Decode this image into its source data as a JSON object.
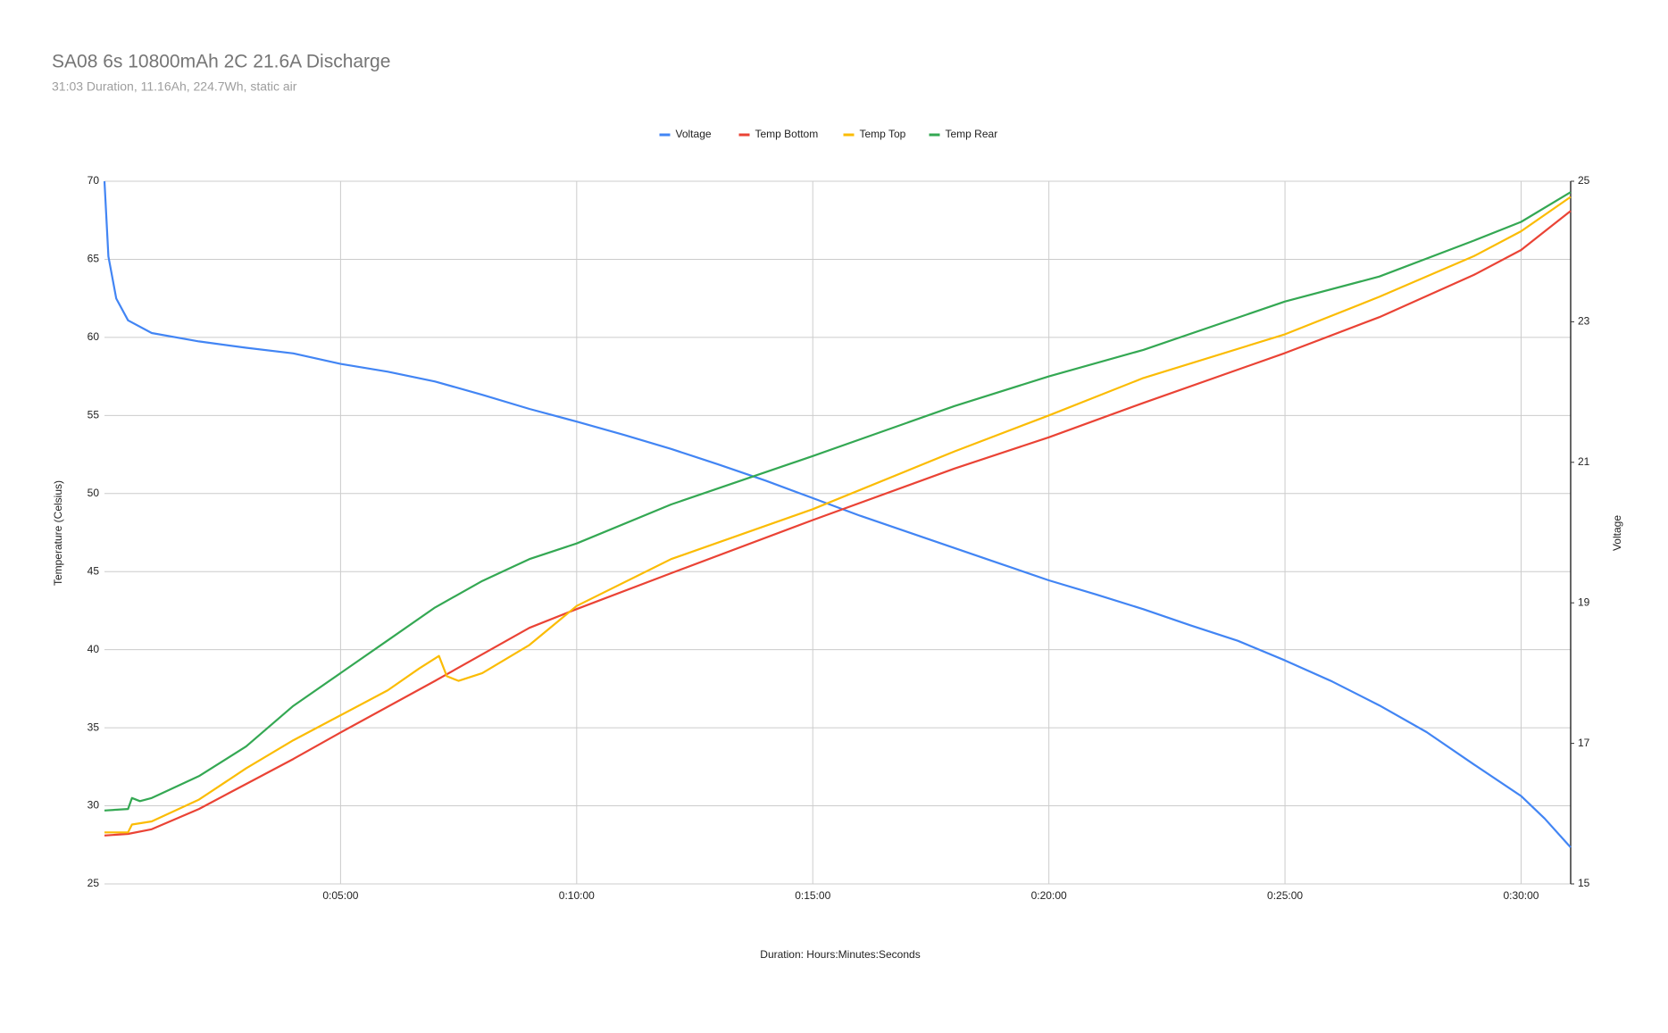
{
  "chart_data": {
    "type": "line",
    "title": "SA08 6s 10800mAh 2C 21.6A Discharge",
    "subtitle": "31:03 Duration, 11.16Ah, 224.7Wh, static air",
    "x_label": "Duration: Hours:Minutes:Seconds",
    "y_label": "Temperature (Celsius)",
    "y2_label": "Voltage",
    "xlim": [
      0,
      1863
    ],
    "xticks": [
      {
        "value": 300,
        "label": "0:05:00"
      },
      {
        "value": 600,
        "label": "0:10:00"
      },
      {
        "value": 900,
        "label": "0:15:00"
      },
      {
        "value": 1200,
        "label": "0:20:00"
      },
      {
        "value": 1500,
        "label": "0:25:00"
      },
      {
        "value": 1800,
        "label": "0:30:00"
      }
    ],
    "ylim": [
      25,
      70
    ],
    "yticks": [
      25,
      30,
      35,
      40,
      45,
      50,
      55,
      60,
      65,
      70
    ],
    "y2lim": [
      15,
      25
    ],
    "y2ticks": [
      15,
      17,
      19,
      21,
      23,
      25
    ],
    "grid": true,
    "legend": "top",
    "series": [
      {
        "name": "Voltage",
        "color": "#4285f4",
        "axis": "y2",
        "x": [
          0,
          5,
          15,
          30,
          60,
          120,
          180,
          240,
          300,
          360,
          420,
          480,
          540,
          600,
          660,
          720,
          780,
          840,
          900,
          960,
          1020,
          1080,
          1140,
          1200,
          1260,
          1320,
          1380,
          1440,
          1500,
          1560,
          1620,
          1680,
          1740,
          1800,
          1830,
          1863
        ],
        "values": [
          25.0,
          23.93,
          23.33,
          23.02,
          22.84,
          22.72,
          22.63,
          22.55,
          22.4,
          22.29,
          22.15,
          21.96,
          21.76,
          21.58,
          21.39,
          21.19,
          20.97,
          20.74,
          20.49,
          20.24,
          20.01,
          19.78,
          19.55,
          19.32,
          19.12,
          18.91,
          18.68,
          18.46,
          18.18,
          17.88,
          17.54,
          17.16,
          16.7,
          16.25,
          15.93,
          15.52
        ]
      },
      {
        "name": "Temp Bottom",
        "color": "#ea4335",
        "x": [
          0,
          30,
          60,
          120,
          180,
          240,
          300,
          420,
          540,
          600,
          720,
          900,
          1080,
          1200,
          1320,
          1500,
          1620,
          1740,
          1800,
          1863
        ],
        "values": [
          28.1,
          28.2,
          28.5,
          29.8,
          31.4,
          33.0,
          34.7,
          38.0,
          41.4,
          42.6,
          44.9,
          48.3,
          51.6,
          53.6,
          55.8,
          59.0,
          61.3,
          64.0,
          65.6,
          68.1
        ]
      },
      {
        "name": "Temp Top",
        "color": "#fbbc04",
        "x": [
          0,
          30,
          35,
          60,
          120,
          180,
          240,
          300,
          360,
          400,
          425,
          435,
          450,
          480,
          540,
          600,
          720,
          900,
          1080,
          1200,
          1320,
          1500,
          1620,
          1740,
          1800,
          1863
        ],
        "values": [
          28.3,
          28.3,
          28.8,
          29.0,
          30.4,
          32.4,
          34.2,
          35.8,
          37.4,
          38.8,
          39.6,
          38.3,
          38.0,
          38.5,
          40.3,
          42.8,
          45.8,
          49.0,
          52.7,
          55.0,
          57.4,
          60.2,
          62.6,
          65.2,
          66.8,
          69.0
        ]
      },
      {
        "name": "Temp Rear",
        "color": "#34a853",
        "x": [
          0,
          30,
          35,
          45,
          60,
          120,
          180,
          240,
          300,
          360,
          420,
          480,
          540,
          600,
          720,
          900,
          1080,
          1200,
          1320,
          1500,
          1620,
          1740,
          1800,
          1863
        ],
        "values": [
          29.7,
          29.8,
          30.5,
          30.3,
          30.5,
          31.9,
          33.8,
          36.4,
          38.5,
          40.6,
          42.7,
          44.4,
          45.8,
          46.8,
          49.3,
          52.4,
          55.6,
          57.5,
          59.2,
          62.3,
          63.9,
          66.2,
          67.4,
          69.3
        ]
      }
    ]
  }
}
